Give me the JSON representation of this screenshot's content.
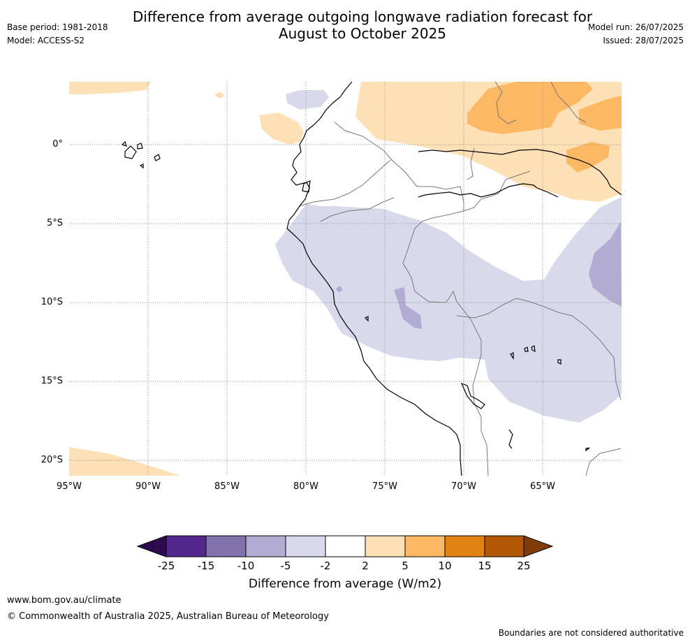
{
  "header": {
    "title_line1": "Difference from average outgoing longwave radiation forecast for",
    "title_line2": "August to October 2025",
    "base_period": "Base period: 1981-2018",
    "model": "Model: ACCESS-S2",
    "model_run": "Model run: 26/07/2025",
    "issued": "Issued: 28/07/2025"
  },
  "map": {
    "lat_labels": [
      "0°",
      "5°S",
      "10°S",
      "15°S",
      "20°S"
    ],
    "lon_labels": [
      "95°W",
      "90°W",
      "85°W",
      "80°W",
      "75°W",
      "70°W",
      "65°W"
    ]
  },
  "colorbar": {
    "title": "Difference from average (W/m2)",
    "tick_labels": [
      "-25",
      "-15",
      "-10",
      "-5",
      "-2",
      "2",
      "5",
      "10",
      "15",
      "25"
    ],
    "colors": {
      "under": "#2d0a4e",
      "b1": "#54278f",
      "b2": "#8073ac",
      "b3": "#b2abd2",
      "b4": "#d8daeb",
      "b5": "#ffffff",
      "b6": "#fee0b6",
      "b7": "#fdb863",
      "b8": "#e08214",
      "b9": "#b35806",
      "over": "#7f3b08"
    }
  },
  "footer": {
    "url": "www.bom.gov.au/climate",
    "copyright": "© Commonwealth of Australia 2025, Australian Bureau of Meteorology",
    "disclaimer": "Boundaries are not considered authoritative"
  }
}
